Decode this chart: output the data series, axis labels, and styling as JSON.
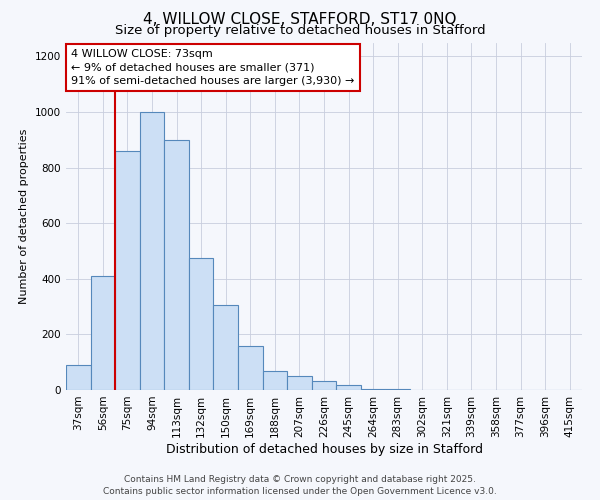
{
  "title": "4, WILLOW CLOSE, STAFFORD, ST17 0NQ",
  "subtitle": "Size of property relative to detached houses in Stafford",
  "xlabel": "Distribution of detached houses by size in Stafford",
  "ylabel": "Number of detached properties",
  "bar_labels": [
    "37sqm",
    "56sqm",
    "75sqm",
    "94sqm",
    "113sqm",
    "132sqm",
    "150sqm",
    "169sqm",
    "188sqm",
    "207sqm",
    "226sqm",
    "245sqm",
    "264sqm",
    "283sqm",
    "302sqm",
    "321sqm",
    "339sqm",
    "358sqm",
    "377sqm",
    "396sqm",
    "415sqm"
  ],
  "bar_values": [
    90,
    410,
    860,
    1000,
    900,
    475,
    305,
    160,
    70,
    50,
    32,
    18,
    5,
    2,
    1,
    1,
    0,
    0,
    0,
    0,
    0
  ],
  "bar_color": "#ccdff5",
  "bar_edge_color": "#5588bb",
  "vline_color": "#cc0000",
  "annotation_line1": "4 WILLOW CLOSE: 73sqm",
  "annotation_line2": "← 9% of detached houses are smaller (371)",
  "annotation_line3": "91% of semi-detached houses are larger (3,930) →",
  "annotation_box_color": "#ffffff",
  "annotation_box_edge": "#cc0000",
  "ylim": [
    0,
    1250
  ],
  "yticks": [
    0,
    200,
    400,
    600,
    800,
    1000,
    1200
  ],
  "footer1": "Contains HM Land Registry data © Crown copyright and database right 2025.",
  "footer2": "Contains public sector information licensed under the Open Government Licence v3.0.",
  "bg_color": "#f5f7fc",
  "grid_color": "#c8cede",
  "title_fontsize": 11,
  "subtitle_fontsize": 9.5,
  "xlabel_fontsize": 9,
  "ylabel_fontsize": 8,
  "tick_fontsize": 7.5,
  "annot_fontsize": 8,
  "footer_fontsize": 6.5
}
